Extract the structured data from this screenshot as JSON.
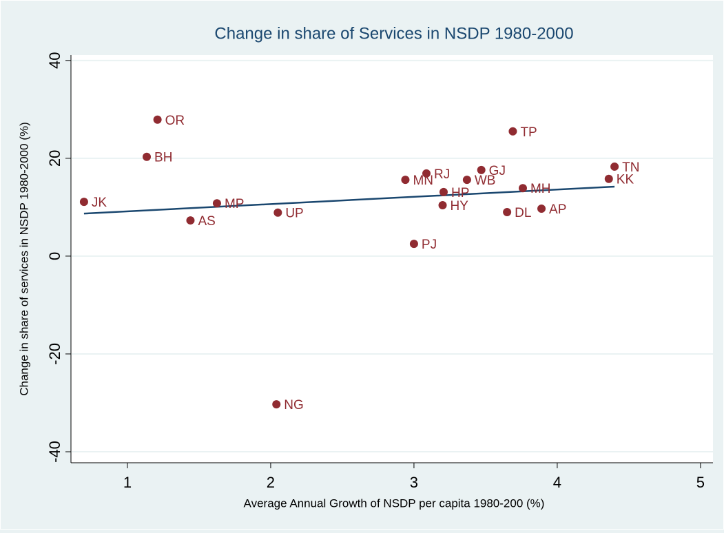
{
  "chart_data": {
    "type": "scatter",
    "title": "Change in share of Services in NSDP 1980-2000",
    "x_label": "Average Annual Growth of NSDP per capita 1980-200 (%)",
    "y_label": "Change in share of services in NSDP 1980-2000 (%)",
    "point_labels": [
      "JK",
      "OR",
      "BH",
      "AS",
      "MP",
      "UP",
      "NG",
      "MN",
      "RJ",
      "PJ",
      "HP",
      "HY",
      "WB",
      "GJ",
      "TP",
      "DL",
      "MH",
      "AP",
      "KK",
      "TN"
    ],
    "x": [
      0.697,
      1.21,
      1.135,
      1.44,
      1.625,
      2.05,
      2.04,
      2.94,
      3.087,
      3.0,
      3.207,
      3.2,
      3.37,
      3.47,
      3.69,
      3.65,
      3.76,
      3.89,
      4.36,
      4.4
    ],
    "values": [
      11.1,
      27.9,
      20.3,
      7.3,
      10.8,
      8.9,
      -30.3,
      15.6,
      16.9,
      2.5,
      13.1,
      10.4,
      15.6,
      17.6,
      25.5,
      9.0,
      13.9,
      9.7,
      15.8,
      18.3
    ],
    "color": "#902b31",
    "fit_line": {
      "x": [
        0.697,
        4.4
      ],
      "values": [
        8.7,
        14.2
      ],
      "color": "#1a476f"
    },
    "xlim": [
      0.606,
      5.087
    ],
    "ylim": [
      -42.25,
      41.1
    ],
    "xticks": [
      1,
      2,
      3,
      4,
      5
    ],
    "yticks": [
      -40,
      -20,
      0,
      20,
      40
    ],
    "grid": true
  }
}
